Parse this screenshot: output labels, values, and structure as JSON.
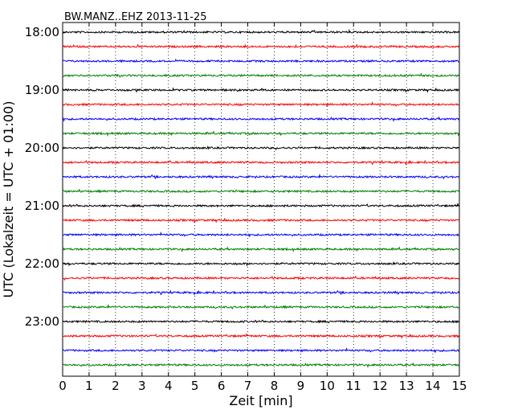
{
  "chart_data": {
    "type": "line",
    "title": "BW.MANZ..EHZ 2013-11-25",
    "xlabel": "Zeit  [min]",
    "ylabel": "UTC (Lokalzeit = UTC + 01:00)",
    "xlim": [
      0,
      15
    ],
    "x_ticks": [
      "0",
      "1",
      "2",
      "3",
      "4",
      "5",
      "6",
      "7",
      "8",
      "9",
      "10",
      "11",
      "12",
      "13",
      "14",
      "15"
    ],
    "y_ticks": [
      "18:00",
      "19:00",
      "20:00",
      "21:00",
      "22:00",
      "23:00"
    ],
    "trace_interval_min": 15,
    "start_time": "18:00",
    "end_time": "24:00",
    "trace_count": 24,
    "trace_colors": [
      "#000000",
      "#ff0000",
      "#0000ff",
      "#008000"
    ],
    "vertical_grid": "dotted",
    "legend": "none"
  }
}
